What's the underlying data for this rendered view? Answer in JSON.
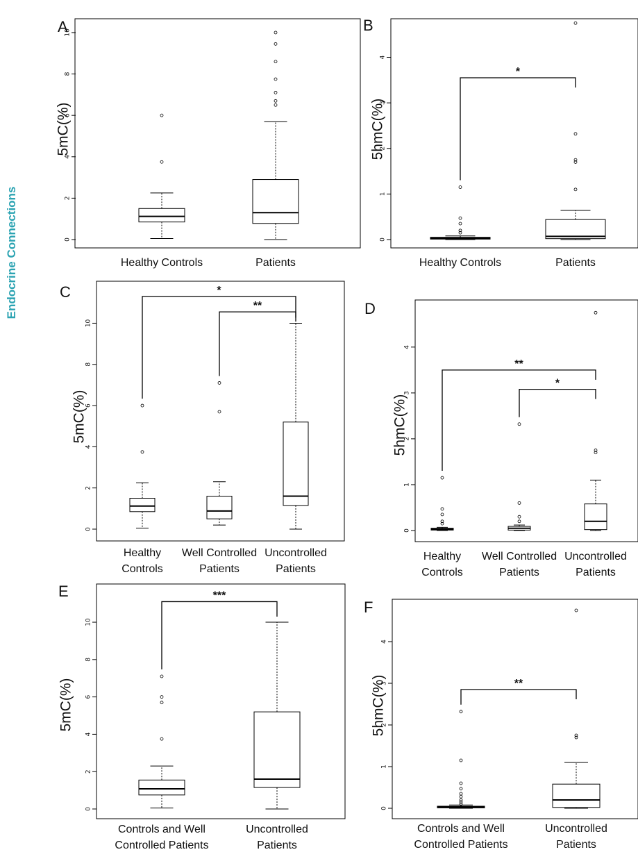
{
  "journal_label": "Endocrine Connections",
  "chart_data": [
    {
      "panel": "A",
      "type": "box",
      "ylabel": "5mC(%)",
      "ylim": [
        0,
        10.4
      ],
      "yticks": [
        0,
        2,
        4,
        6,
        8,
        10
      ],
      "categories": [
        "Healthy Controls",
        "Patients"
      ],
      "boxes": [
        {
          "min": 0.05,
          "q1": 0.85,
          "median": 1.12,
          "q3": 1.5,
          "max": 2.25,
          "outliers": [
            3.75,
            6.0
          ]
        },
        {
          "min": 0.0,
          "q1": 0.78,
          "median": 1.3,
          "q3": 2.9,
          "max": 5.7,
          "outliers": [
            6.5,
            6.7,
            7.1,
            7.75,
            8.6,
            9.45,
            10.0
          ]
        }
      ],
      "comparisons": []
    },
    {
      "panel": "B",
      "type": "box",
      "ylabel": "5hmC(%)",
      "ylim": [
        0,
        4.8
      ],
      "yticks": [
        0,
        1,
        2,
        3,
        4
      ],
      "categories": [
        "Healthy Controls",
        "Patients"
      ],
      "boxes": [
        {
          "min": 0.0,
          "q1": 0.01,
          "median": 0.03,
          "q3": 0.05,
          "max": 0.08,
          "outliers": [
            0.15,
            0.2,
            0.35,
            0.47,
            1.15
          ]
        },
        {
          "min": 0.0,
          "q1": 0.02,
          "median": 0.07,
          "q3": 0.44,
          "max": 0.64,
          "outliers": [
            1.1,
            1.7,
            1.75,
            2.32,
            4.75
          ]
        }
      ],
      "comparisons": [
        {
          "from": 0,
          "to": 1,
          "level": 3.55,
          "label": "*"
        }
      ]
    },
    {
      "panel": "C",
      "type": "box",
      "ylabel": "5mC(%)",
      "ylim": [
        0,
        11.6
      ],
      "yticks": [
        0,
        2,
        4,
        6,
        8,
        10
      ],
      "categories": [
        "Healthy Controls",
        "Well Controlled Patients",
        "Uncontrolled Patients"
      ],
      "boxes": [
        {
          "min": 0.05,
          "q1": 0.85,
          "median": 1.12,
          "q3": 1.5,
          "max": 2.25,
          "outliers": [
            3.75,
            6.0
          ]
        },
        {
          "min": 0.2,
          "q1": 0.5,
          "median": 0.88,
          "q3": 1.6,
          "max": 2.3,
          "outliers": [
            5.7,
            7.1
          ]
        },
        {
          "min": 0.0,
          "q1": 1.15,
          "median": 1.6,
          "q3": 5.2,
          "max": 10.0,
          "outliers": []
        }
      ],
      "comparisons": [
        {
          "from": 0,
          "to": 2,
          "level": 11.3,
          "label": "*"
        },
        {
          "from": 1,
          "to": 2,
          "level": 10.55,
          "label": "**"
        }
      ]
    },
    {
      "panel": "D",
      "type": "box",
      "ylabel": "5hmC(%)",
      "ylim": [
        0,
        4.8
      ],
      "yticks": [
        0,
        1,
        2,
        3,
        4
      ],
      "categories": [
        "Healthy Controls",
        "Well Controlled Patients",
        "Uncontrolled Patients"
      ],
      "boxes": [
        {
          "min": 0.0,
          "q1": 0.01,
          "median": 0.03,
          "q3": 0.05,
          "max": 0.07,
          "outliers": [
            0.15,
            0.2,
            0.35,
            0.47,
            1.15
          ]
        },
        {
          "min": 0.0,
          "q1": 0.01,
          "median": 0.05,
          "q3": 0.09,
          "max": 0.12,
          "outliers": [
            0.2,
            0.3,
            0.6,
            2.32
          ]
        },
        {
          "min": 0.0,
          "q1": 0.02,
          "median": 0.2,
          "q3": 0.58,
          "max": 1.1,
          "outliers": [
            1.7,
            1.75,
            4.75
          ]
        }
      ],
      "comparisons": [
        {
          "from": 0,
          "to": 2,
          "level": 3.5,
          "label": "**"
        },
        {
          "from": 1,
          "to": 2,
          "level": 3.08,
          "label": "*"
        }
      ]
    },
    {
      "panel": "E",
      "type": "box",
      "ylabel": "5mC(%)",
      "ylim": [
        0,
        11.6
      ],
      "yticks": [
        0,
        2,
        4,
        6,
        8,
        10
      ],
      "categories": [
        "Controls and Well Controlled Patients",
        "Uncontrolled Patients"
      ],
      "boxes": [
        {
          "min": 0.05,
          "q1": 0.75,
          "median": 1.08,
          "q3": 1.55,
          "max": 2.3,
          "outliers": [
            3.75,
            5.7,
            6.0,
            7.1
          ]
        },
        {
          "min": 0.0,
          "q1": 1.15,
          "median": 1.6,
          "q3": 5.2,
          "max": 10.0,
          "outliers": []
        }
      ],
      "comparisons": [
        {
          "from": 0,
          "to": 1,
          "level": 11.1,
          "label": "***"
        }
      ]
    },
    {
      "panel": "F",
      "type": "box",
      "ylabel": "5hmC(%)",
      "ylim": [
        0,
        4.8
      ],
      "yticks": [
        0,
        1,
        2,
        3,
        4
      ],
      "categories": [
        "Controls and Well Controlled Patients",
        "Uncontrolled Patients"
      ],
      "boxes": [
        {
          "min": 0.0,
          "q1": 0.01,
          "median": 0.03,
          "q3": 0.05,
          "max": 0.08,
          "outliers": [
            0.1,
            0.15,
            0.2,
            0.28,
            0.35,
            0.47,
            0.6,
            1.15,
            2.32
          ]
        },
        {
          "min": 0.0,
          "q1": 0.02,
          "median": 0.2,
          "q3": 0.58,
          "max": 1.1,
          "outliers": [
            1.7,
            1.75,
            4.75
          ]
        }
      ],
      "comparisons": [
        {
          "from": 0,
          "to": 1,
          "level": 2.85,
          "label": "**"
        }
      ]
    }
  ]
}
